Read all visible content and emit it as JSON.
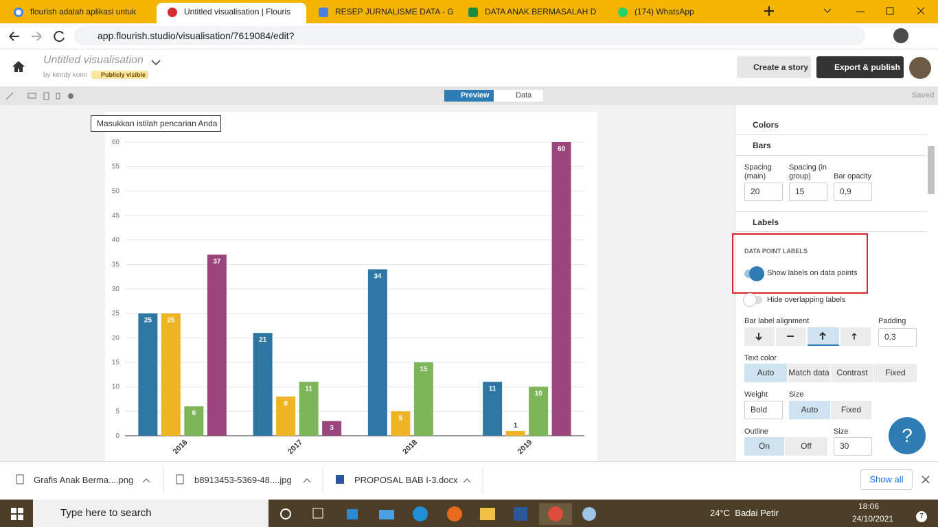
{
  "tabs": [
    "flourish adalah aplikasi untuk",
    "Untitled visualisation | Flouris",
    "RESEP JURNALISME DATA - G",
    "DATA ANAK BERMASALAH D",
    "(174) WhatsApp"
  ],
  "address": "app.flourish.studio/visualisation/7619084/edit?",
  "header": {
    "title": "Untitled visualisation",
    "byline": "by kendy komi",
    "visibility": "Publicly visible",
    "create_story": "Create a story",
    "export": "Export & publish"
  },
  "toolbar": {
    "preview": "Preview",
    "data": "Data",
    "status": "Saved"
  },
  "search_placeholder": "Masukkan istilah pencarian Anda",
  "chart_data": {
    "type": "bar",
    "categories": [
      "2016",
      "2017",
      "2018",
      "2019"
    ],
    "series": [
      {
        "color": "#2e77a4",
        "values": [
          25,
          21,
          34,
          11
        ]
      },
      {
        "color": "#efb423",
        "values": [
          25,
          8,
          5,
          1
        ]
      },
      {
        "color": "#7db659",
        "values": [
          6,
          11,
          15,
          10
        ]
      },
      {
        "color": "#9a457c",
        "values": [
          37,
          3,
          null,
          60
        ]
      }
    ],
    "ylim": [
      0,
      60
    ],
    "yticks": [
      0,
      5,
      10,
      15,
      20,
      25,
      30,
      35,
      40,
      45,
      50,
      55,
      60
    ],
    "grid": true,
    "data_labels": true
  },
  "panel": {
    "colors": "Colors",
    "bars": "Bars",
    "bar_fields": [
      {
        "label": "Spacing (main)",
        "value": "20"
      },
      {
        "label": "Spacing (in group)",
        "value": "15"
      },
      {
        "label": "Bar opacity",
        "value": "0,9"
      }
    ],
    "labels": "Labels",
    "data_point_labels": "DATA POINT LABELS",
    "show_labels": "Show labels on data points",
    "hide_overlapping": "Hide overlapping labels",
    "bar_label_alignment": "Bar label alignment",
    "padding": "Padding",
    "padding_value": "0,3",
    "text_color": "Text color",
    "text_color_options": [
      "Auto",
      "Match data",
      "Contrast",
      "Fixed"
    ],
    "weight": "Weight",
    "weight_value": "Bold",
    "size": "Size",
    "size_options": [
      "Auto",
      "Fixed"
    ],
    "outline": "Outline",
    "outline_options": [
      "On",
      "Off"
    ],
    "outline_size": "Size",
    "outline_size_value": "30",
    "help": "?"
  },
  "downloads": [
    "Grafis Anak Berma....png",
    "b8913453-5369-48....jpg",
    "PROPOSAL BAB I-3.docx"
  ],
  "show_all": "Show all",
  "taskbar": {
    "search": "Type here to search",
    "weather": "24°C  Badai Petir",
    "time": "18:06",
    "date": "24/10/2021",
    "notifications": "7"
  }
}
